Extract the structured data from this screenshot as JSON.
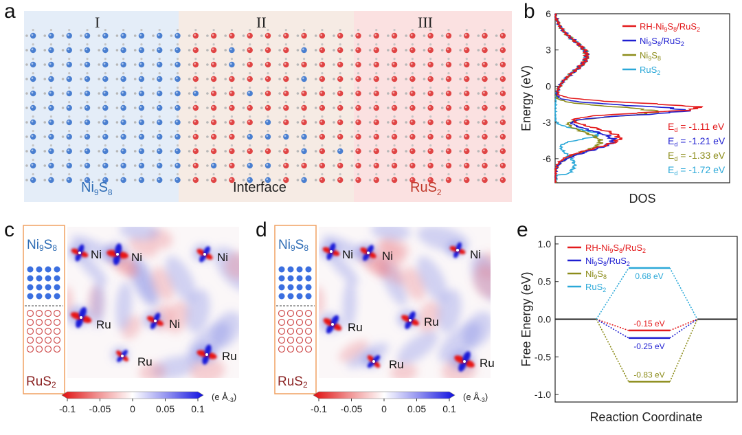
{
  "panel_a": {
    "letter": "a",
    "regions": [
      {
        "numeral": "I",
        "label_main": "Ni",
        "label_sub1": "9",
        "label_mid": "S",
        "label_sub2": "8",
        "label_end": "",
        "color": "#2f6db5",
        "bg": "#e4edf8"
      },
      {
        "numeral": "II",
        "label_main": "Interface",
        "label_sub1": "",
        "label_mid": "",
        "label_sub2": "",
        "label_end": "",
        "color": "#222222",
        "bg": "#f6ebe4"
      },
      {
        "numeral": "III",
        "label_main": "RuS",
        "label_sub1": "",
        "label_mid": "",
        "label_sub2": "2",
        "label_end": "",
        "color": "#c0392b",
        "bg": "#fbe1e1"
      }
    ]
  },
  "chart_data": [
    {
      "type": "line",
      "panel": "b",
      "xlabel": "DOS",
      "ylabel": "Energy (eV)",
      "ylim": [
        -8,
        6
      ],
      "yticks": [
        6,
        3,
        0,
        -3,
        -6
      ],
      "series": [
        {
          "name": "RH-Ni9S8/RuS2",
          "color": "#e31a1c",
          "d_band_center": "Ed = -1.11 eV",
          "peak": [
            -1.8,
            1.0
          ]
        },
        {
          "name": "Ni9S8/RuS2",
          "color": "#1f1fd1",
          "d_band_center": "Ed = -1.21 eV",
          "peak": [
            -2.0,
            0.9
          ]
        },
        {
          "name": "Ni9S8",
          "color": "#8c8c1a",
          "d_band_center": "Ed = -1.33 eV",
          "peak": [
            -2.1,
            0.7
          ]
        },
        {
          "name": "RuS2",
          "color": "#2aa8d8",
          "d_band_center": "Ed = -1.72 eV",
          "peak": [
            -4.0,
            0.3
          ]
        }
      ]
    },
    {
      "type": "line",
      "panel": "e",
      "xlabel": "Reaction Coordinate",
      "ylabel": "Free Energy (eV)",
      "ylim": [
        -1.1,
        1.1
      ],
      "yticks": [
        1.0,
        0.5,
        0.0,
        -0.5,
        -1.0
      ],
      "ytick_labels": [
        "1.0",
        "0.5",
        "0.0",
        "-0.5",
        "-1.0"
      ],
      "series": [
        {
          "name": "RH-Ni9S8/RuS2",
          "color": "#e31a1c",
          "value": -0.15,
          "label": "-0.15 eV"
        },
        {
          "name": "Ni9S8/RuS2",
          "color": "#1f1fd1",
          "value": -0.25,
          "label": "-0.25 eV"
        },
        {
          "name": "Ni9S8",
          "color": "#8c8c1a",
          "value": -0.83,
          "label": "-0.83 eV"
        },
        {
          "name": "RuS2",
          "color": "#2aa8d8",
          "value": 0.68,
          "label": "0.68 eV"
        }
      ]
    }
  ],
  "panel_b": {
    "letter": "b",
    "legend": [
      {
        "a": "RH-Ni",
        "b": "9",
        "c": "S",
        "d": "8",
        "e": "/RuS",
        "f": "2"
      },
      {
        "a": "Ni",
        "b": "9",
        "c": "S",
        "d": "8",
        "e": "/RuS",
        "f": "2"
      },
      {
        "a": "Ni",
        "b": "9",
        "c": "S",
        "d": "8",
        "e": "",
        "f": ""
      },
      {
        "a": "RuS",
        "b": "",
        "c": "",
        "d": "2",
        "e": "",
        "f": ""
      }
    ],
    "ed_labels": [
      {
        "a": "E",
        "b": "d",
        "c": " = -1.11 eV"
      },
      {
        "a": "E",
        "b": "d",
        "c": " = -1.21 eV"
      },
      {
        "a": "E",
        "b": "d",
        "c": " = -1.33 eV"
      },
      {
        "a": "E",
        "b": "d",
        "c": " = -1.72 eV"
      }
    ]
  },
  "panel_c": {
    "letter": "c",
    "top_label": {
      "a": "Ni",
      "b": "9",
      "c": "S",
      "d": "8"
    },
    "bottom_label": {
      "a": "RuS",
      "b": "2"
    },
    "atoms": [
      "Ni",
      "Ni",
      "Ni",
      "Ru",
      "Ni",
      "Ru",
      "Ru"
    ],
    "colorbar": {
      "ticks": [
        "-0.1",
        "-0.05",
        "0",
        "0.05",
        "0.1"
      ],
      "unit_a": "(e Å",
      "unit_b": "-3",
      "unit_c": ")"
    }
  },
  "panel_d": {
    "letter": "d",
    "top_label": {
      "a": "Ni",
      "b": "9",
      "c": "S",
      "d": "8"
    },
    "bottom_label": {
      "a": "RuS",
      "b": "2"
    },
    "atoms": [
      "Ni",
      "Ni",
      "Ni",
      "Ru",
      "Ru",
      "Ru",
      "Ru"
    ],
    "colorbar": {
      "ticks": [
        "-0.1",
        "-0.05",
        "0",
        "0.05",
        "0.1"
      ],
      "unit_a": "(e Å",
      "unit_b": "-3",
      "unit_c": ")"
    }
  },
  "panel_e": {
    "letter": "e",
    "legend": [
      {
        "a": "RH-Ni",
        "b": "9",
        "c": "S",
        "d": "8",
        "e": "/RuS",
        "f": "2"
      },
      {
        "a": "Ni",
        "b": "9",
        "c": "S",
        "d": "8",
        "e": "/RuS",
        "f": "2"
      },
      {
        "a": "Ni",
        "b": "9",
        "c": "S",
        "d": "8",
        "e": "",
        "f": ""
      },
      {
        "a": "RuS",
        "b": "",
        "c": "",
        "d": "2",
        "e": "",
        "f": ""
      }
    ]
  }
}
